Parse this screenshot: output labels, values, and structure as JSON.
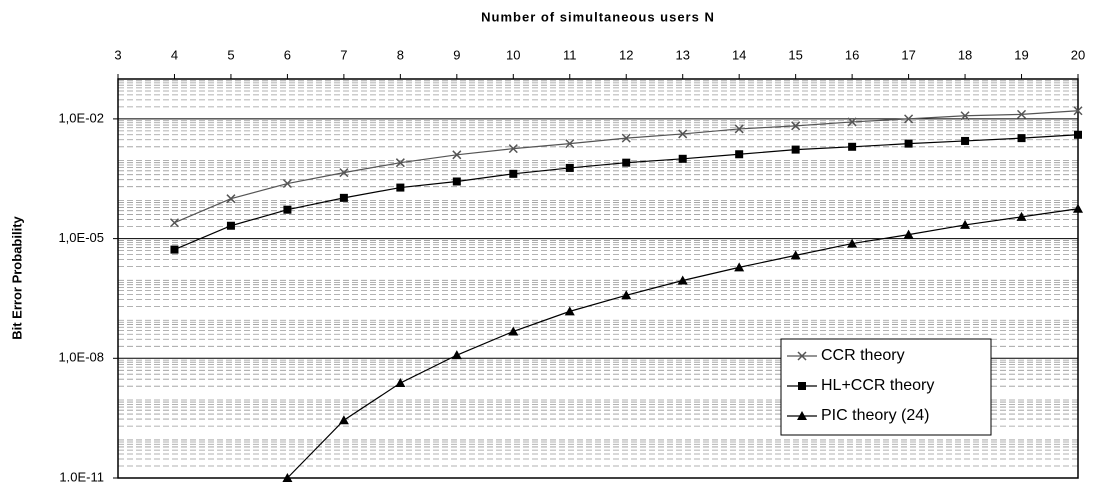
{
  "chart_data": {
    "type": "line",
    "x_label": "Number of simultaneous users N",
    "y_label": "Bit Error Probability",
    "xlim": [
      3,
      20
    ],
    "xticks": [
      3,
      4,
      5,
      6,
      7,
      8,
      9,
      10,
      11,
      12,
      13,
      14,
      15,
      16,
      17,
      18,
      19,
      20
    ],
    "ylim": [
      1e-11,
      0.1
    ],
    "log_y": true,
    "yticks": [
      {
        "value": 1e-11,
        "label": "1.0E-11"
      },
      {
        "value": 1e-08,
        "label": "1,0E-08"
      },
      {
        "value": 1e-05,
        "label": "1,0E-05"
      },
      {
        "value": 0.01,
        "label": "1,0E-02"
      }
    ],
    "grid": true,
    "legend": "lower right",
    "series": [
      {
        "name": "CCR theory",
        "color": "#555555",
        "marker": "x",
        "x": [
          4,
          5,
          6,
          7,
          8,
          9,
          10,
          11,
          12,
          13,
          14,
          15,
          16,
          17,
          18,
          19,
          20
        ],
        "values": [
          2.5e-05,
          0.0001,
          0.00024,
          0.00045,
          0.0008,
          0.00126,
          0.0018,
          0.0024,
          0.0033,
          0.0042,
          0.0056,
          0.0067,
          0.0084,
          0.01,
          0.012,
          0.013,
          0.016
        ]
      },
      {
        "name": "HL+CCR theory",
        "color": "#000000",
        "marker": "square",
        "x": [
          4,
          5,
          6,
          7,
          8,
          9,
          10,
          11,
          12,
          13,
          14,
          15,
          16,
          17,
          18,
          19,
          20
        ],
        "values": [
          5.3e-06,
          2.1e-05,
          5.3e-05,
          0.000105,
          0.00019,
          0.00027,
          0.00042,
          0.00059,
          0.0008,
          0.001,
          0.0013,
          0.0017,
          0.002,
          0.0024,
          0.0028,
          0.0033,
          0.004
        ]
      },
      {
        "name": "PIC theory (24)",
        "color": "#000000",
        "marker": "triangle",
        "x": [
          6,
          7,
          8,
          9,
          10,
          11,
          12,
          13,
          14,
          15,
          16,
          17,
          18,
          19,
          20
        ],
        "values": [
          1e-11,
          2.8e-10,
          2.4e-09,
          1.2e-08,
          4.7e-08,
          1.5e-07,
          3.8e-07,
          8.9e-07,
          1.9e-06,
          3.8e-06,
          7.5e-06,
          1.26e-05,
          2.2e-05,
          3.5e-05,
          5.6e-05
        ]
      }
    ]
  }
}
